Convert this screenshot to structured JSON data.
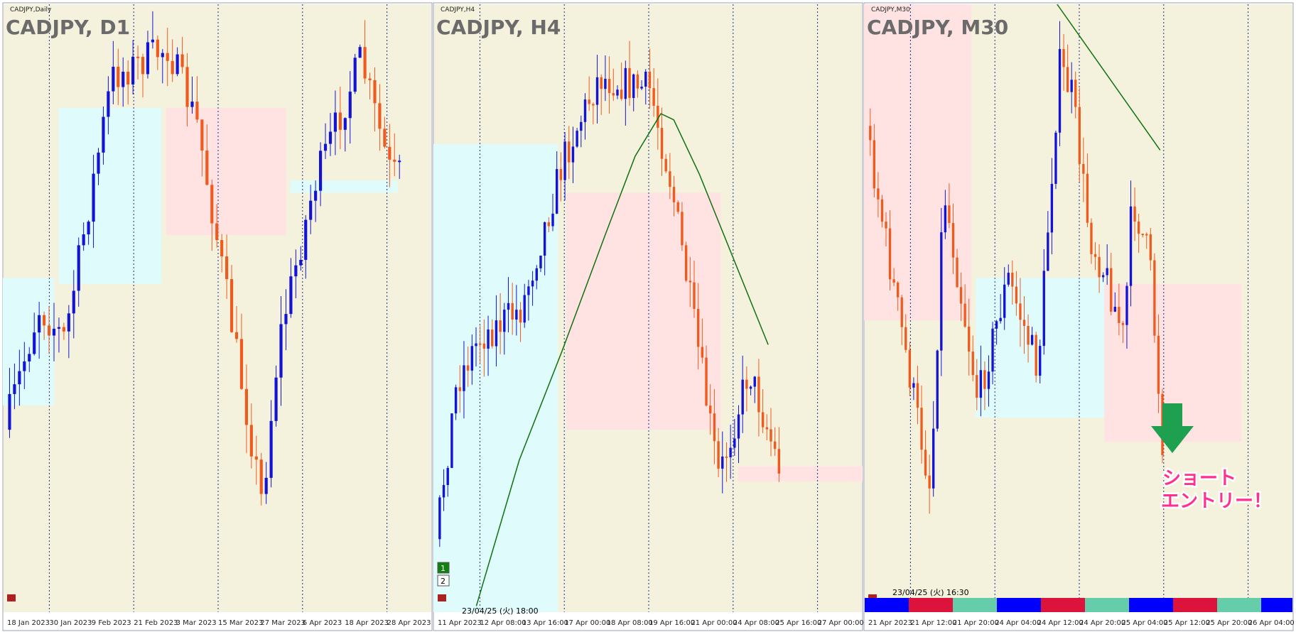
{
  "panels": [
    {
      "window_label": "CADJPY,Daily",
      "title": "CADJPY, D1",
      "x_labels": [
        "18 Jan 2023",
        "30 Jan 2023",
        "9 Feb 2023",
        "21 Feb 2023",
        "3 Mar 2023",
        "15 Mar 2023",
        "27 Mar 2023",
        "6 Apr 2023",
        "18 Apr 2023",
        "28 Apr 2023"
      ]
    },
    {
      "window_label": "CADJPY,H4",
      "title": "CADJPY, H4",
      "timestamp": "23/04/25 (火) 18:00",
      "badges": [
        "1",
        "2"
      ],
      "x_labels": [
        "11 Apr 2023",
        "12 Apr 08:00",
        "13 Apr 16:00",
        "17 Apr 00:00",
        "18 Apr 08:00",
        "19 Apr 16:00",
        "21 Apr 00:00",
        "24 Apr 08:00",
        "25 Apr 16:00",
        "27 Apr 00:00"
      ]
    },
    {
      "window_label": "CADJPY,M30",
      "title": "CADJPY, M30",
      "timestamp": "23/04/25 (火) 16:30",
      "x_labels": [
        "21 Apr 2023",
        "21 Apr 12:00",
        "21 Apr 20:00",
        "24 Apr 04:00",
        "24 Apr 12:00",
        "24 Apr 20:00",
        "25 Apr 04:00",
        "25 Apr 12:00",
        "25 Apr 20:00",
        "26 Apr 04:00"
      ]
    }
  ],
  "annotation": [
    "ショート",
    "エントリー！"
  ]
}
